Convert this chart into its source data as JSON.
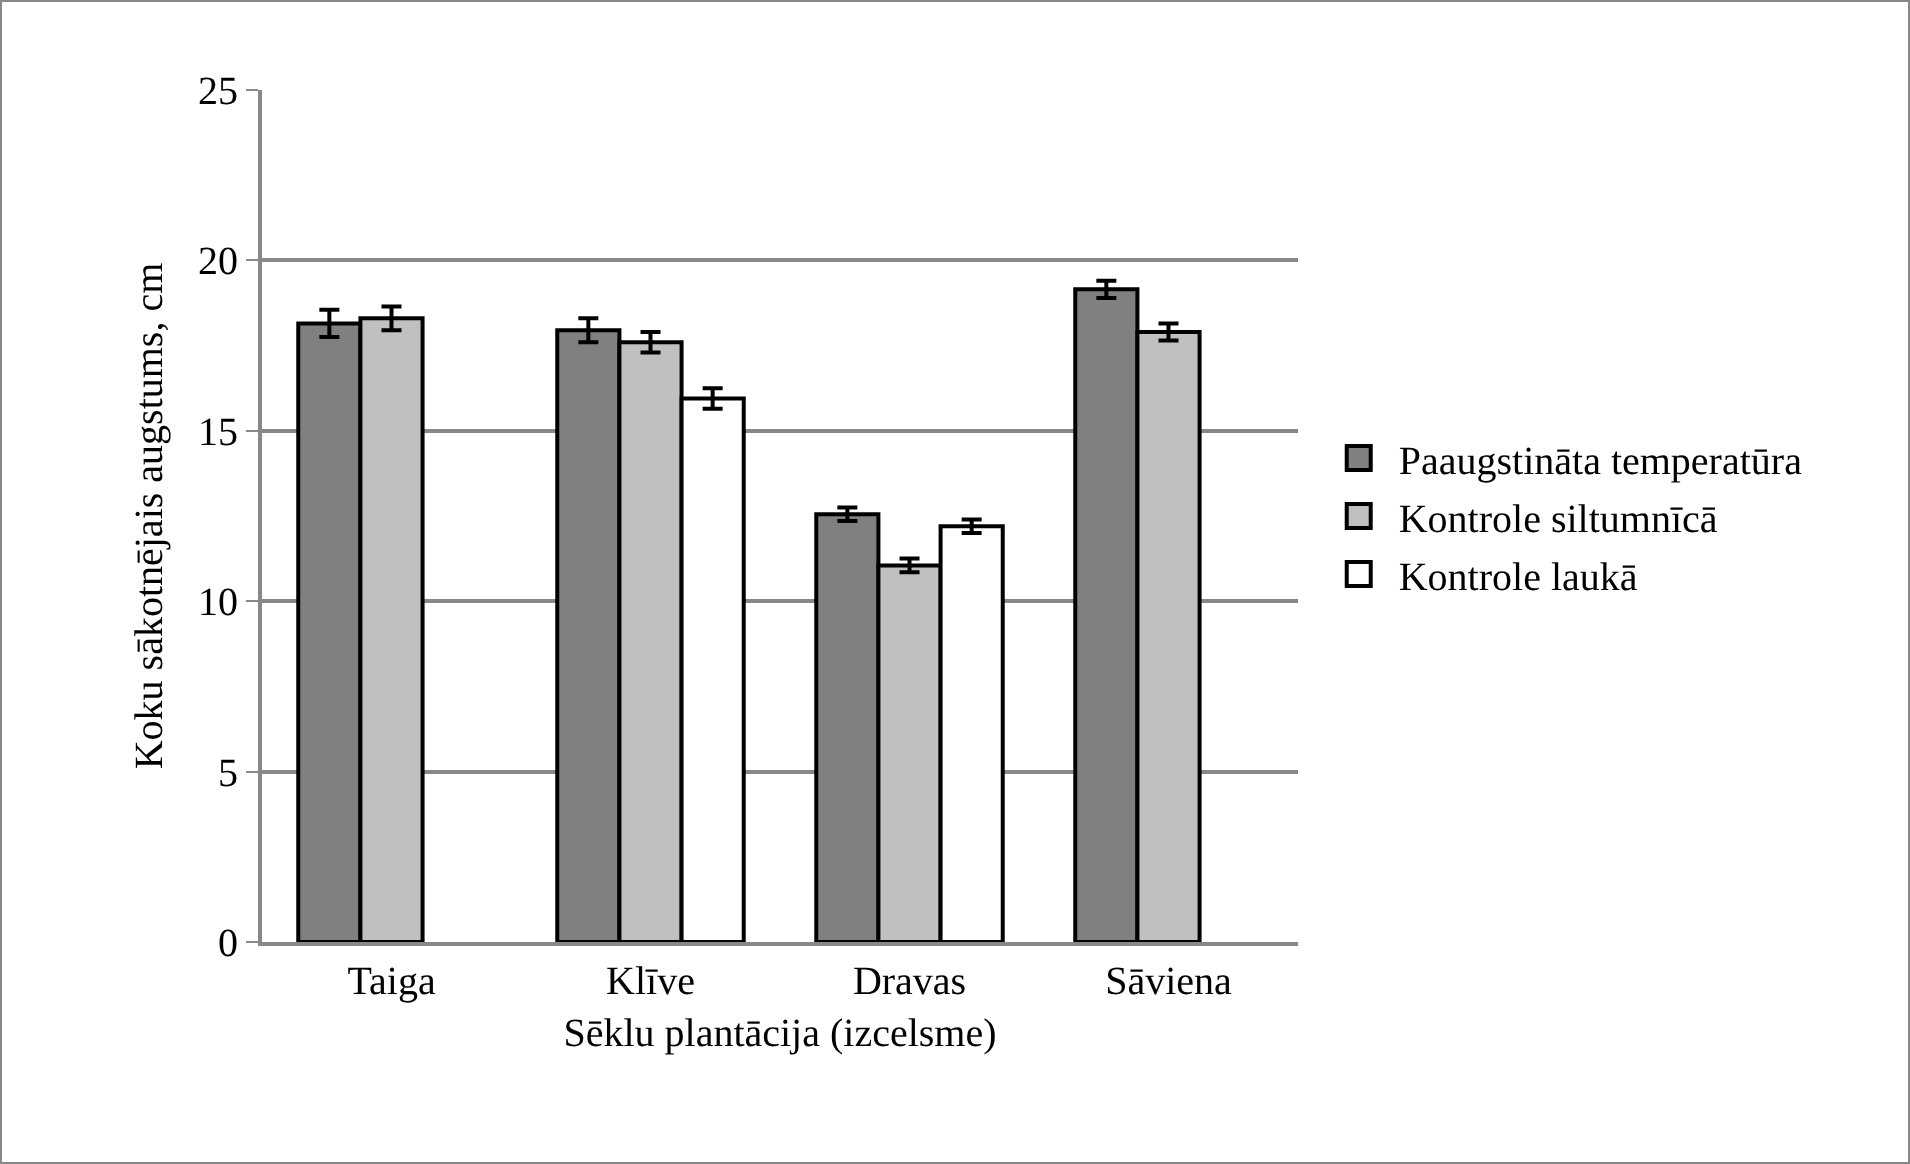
{
  "chart_data": {
    "type": "bar",
    "xlabel": "Sēklu plantācija (izcelsme)",
    "ylabel": "Koku sākotnējais augstums, cm",
    "categories": [
      "Taiga",
      "Klīve",
      "Dravas",
      "Sāviena"
    ],
    "series": [
      {
        "name": "Paaugstināta temperatūra",
        "color": "#808080",
        "values": [
          18.15,
          17.95,
          12.55,
          19.15
        ],
        "errors": [
          0.4,
          0.35,
          0.2,
          0.25
        ]
      },
      {
        "name": "Kontrole siltumnīcā",
        "color": "#c0c0c0",
        "values": [
          18.3,
          17.6,
          11.05,
          17.9
        ],
        "errors": [
          0.35,
          0.3,
          0.2,
          0.25
        ]
      },
      {
        "name": "Kontrole laukā",
        "color": "#ffffff",
        "values": [
          null,
          15.95,
          12.2,
          null
        ],
        "errors": [
          null,
          0.3,
          0.2,
          null
        ]
      }
    ],
    "ylim": [
      0,
      25
    ],
    "yticks": [
      0,
      5,
      10,
      15,
      20,
      25
    ],
    "grid": "y",
    "legend": "right"
  }
}
